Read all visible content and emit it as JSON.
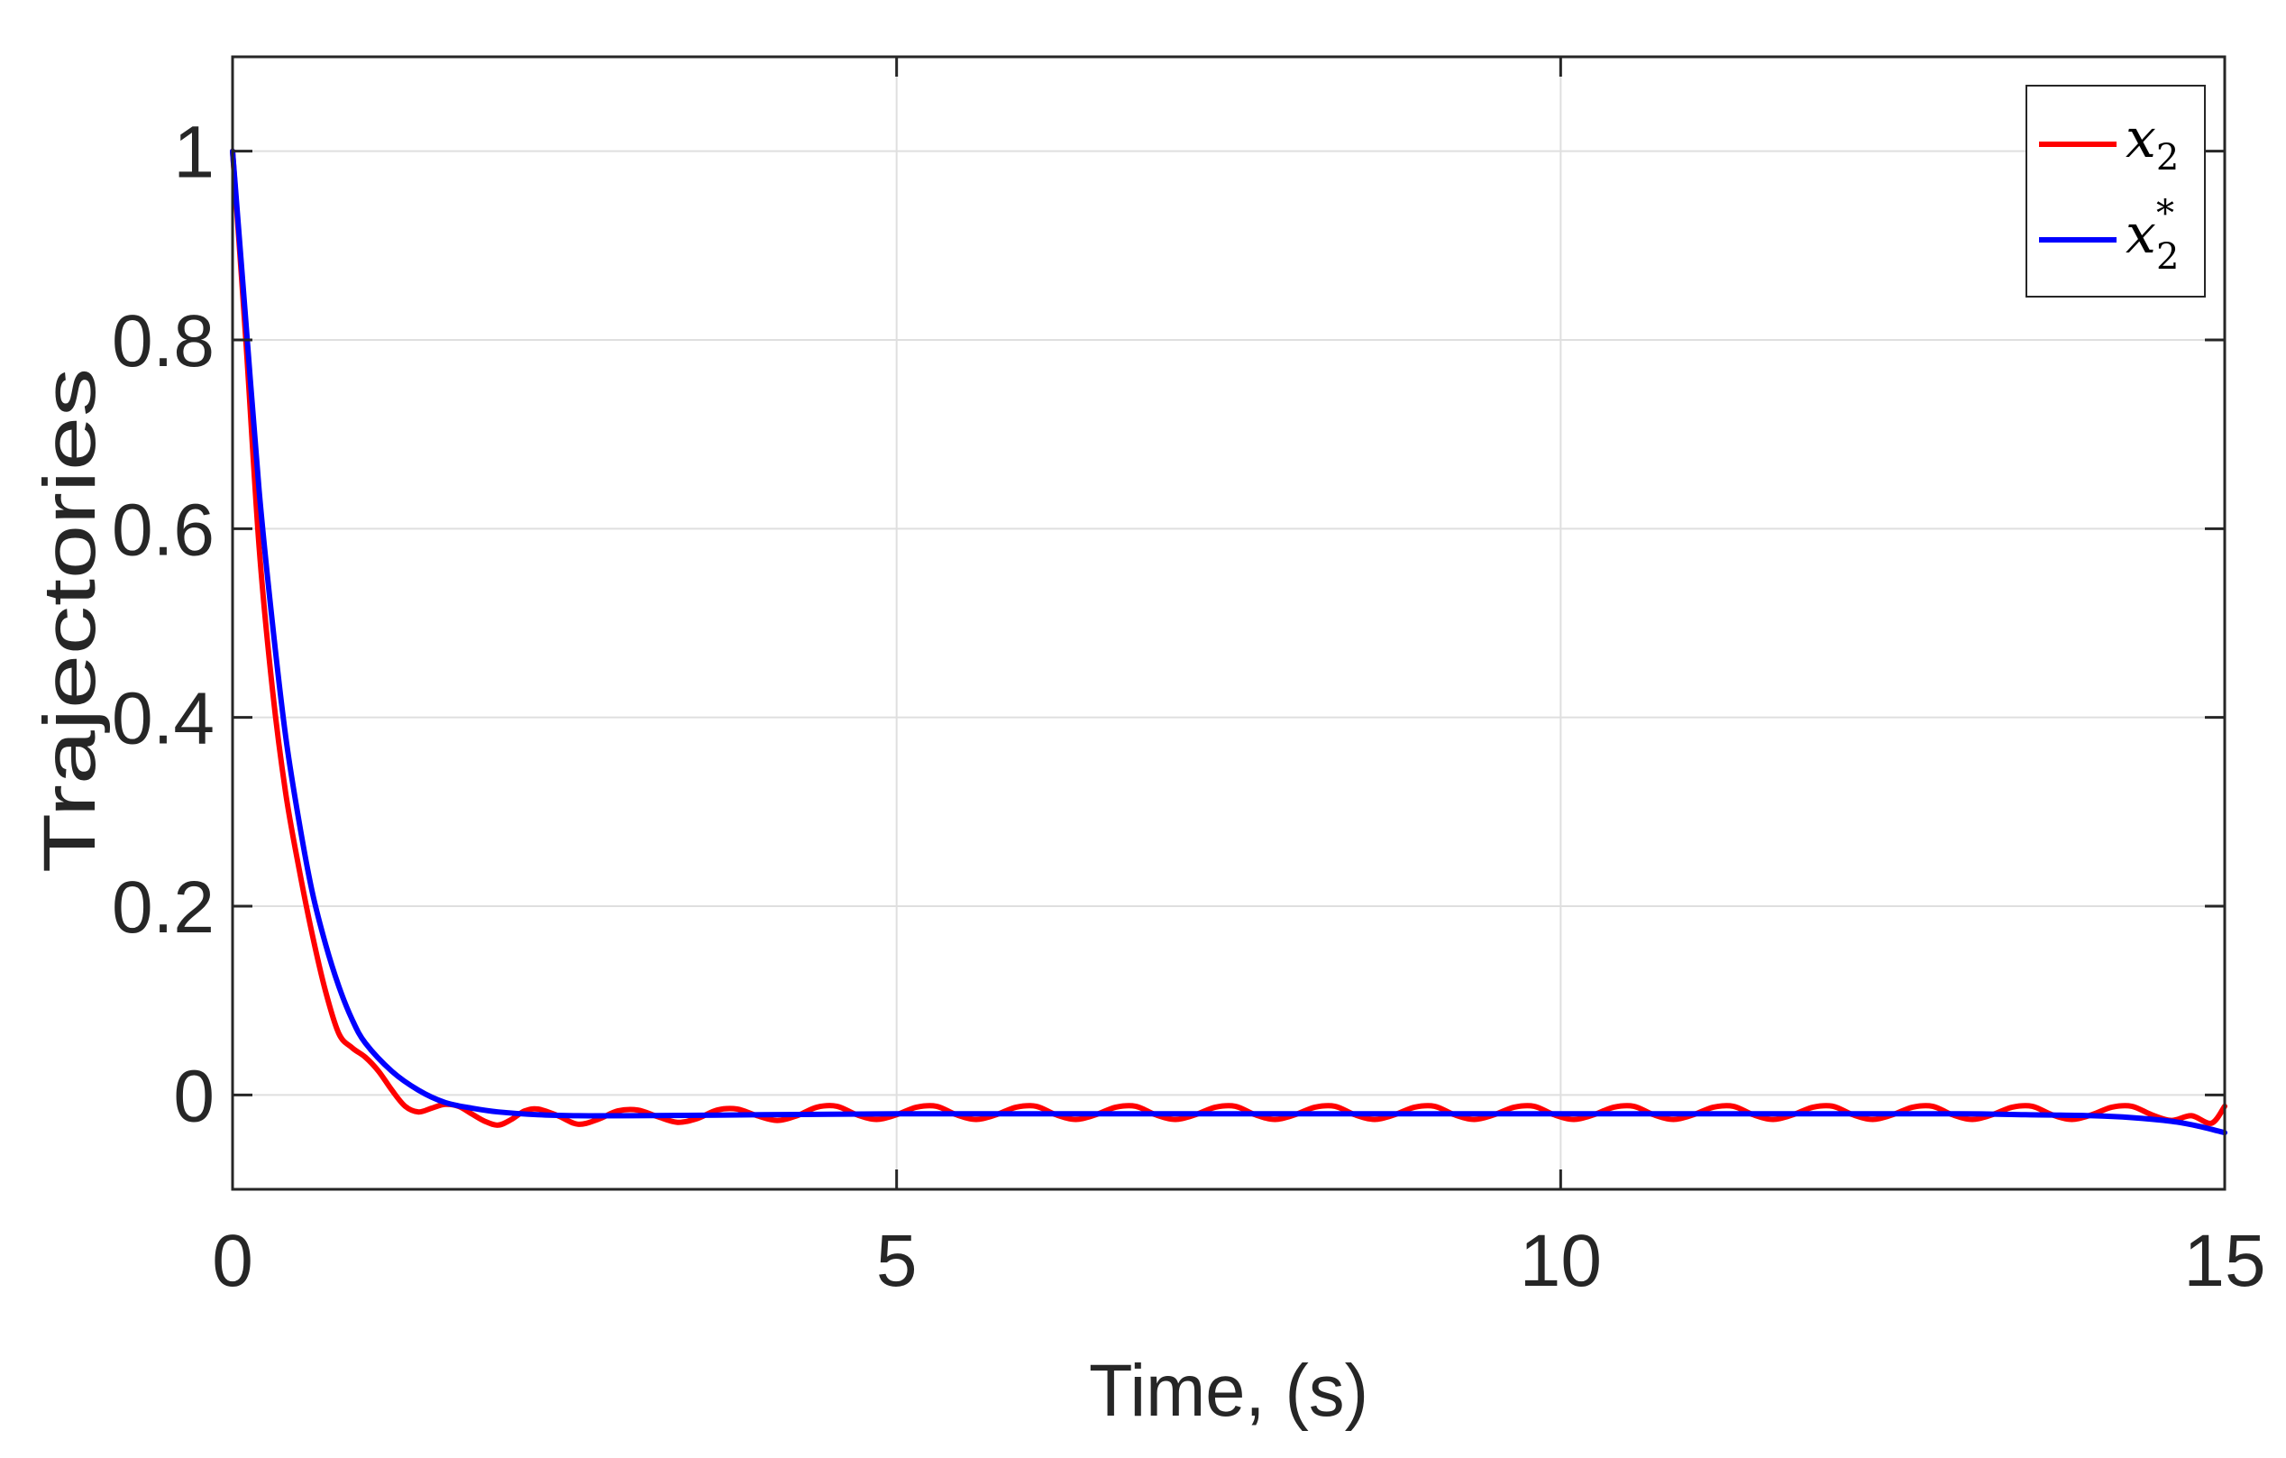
{
  "chart_data": {
    "type": "line",
    "xlabel": "Time, (s)",
    "ylabel": "Trajectories",
    "xlim": [
      0,
      15
    ],
    "ylim": [
      -0.1,
      1.1
    ],
    "x_ticks": [
      0,
      5,
      10,
      15
    ],
    "x_tick_labels": [
      "0",
      "5",
      "10",
      "15"
    ],
    "y_ticks": [
      0,
      0.2,
      0.4,
      0.6,
      0.8,
      1
    ],
    "y_tick_labels": [
      "0",
      "0.2",
      "0.4",
      "0.6",
      "0.8",
      "1"
    ],
    "grid": true,
    "legend_position": "top-right",
    "legend": [
      {
        "base": "x",
        "sub": "2",
        "sup": ""
      },
      {
        "base": "x",
        "sub": "2",
        "sup": "*"
      }
    ],
    "series": [
      {
        "name": "x2",
        "color": "#ff0000",
        "x": [
          0,
          0.1,
          0.2,
          0.3,
          0.4,
          0.5,
          0.6,
          0.7,
          0.8,
          0.9,
          1.0,
          1.1,
          1.2,
          1.3,
          1.4,
          1.5,
          1.6,
          1.7,
          1.8,
          1.9,
          2.0,
          2.1,
          2.2,
          2.3,
          2.45,
          2.6,
          2.75,
          2.9,
          3.05,
          3.2,
          3.35,
          3.5,
          3.65,
          3.8,
          3.95,
          4.1,
          4.25,
          4.4,
          4.55,
          4.7,
          4.85,
          5.0,
          5.15,
          5.3,
          5.45,
          5.6,
          5.75,
          5.9,
          6.05,
          6.2,
          6.35,
          6.5,
          6.65,
          6.8,
          6.95,
          7.1,
          7.25,
          7.4,
          7.55,
          7.7,
          7.85,
          8.0,
          8.15,
          8.3,
          8.45,
          8.6,
          8.75,
          8.9,
          9.05,
          9.2,
          9.35,
          9.5,
          9.65,
          9.8,
          9.95,
          10.1,
          10.25,
          10.4,
          10.55,
          10.7,
          10.85,
          11.0,
          11.15,
          11.3,
          11.45,
          11.6,
          11.75,
          11.9,
          12.05,
          12.2,
          12.35,
          12.5,
          12.65,
          12.8,
          12.95,
          13.1,
          13.25,
          13.4,
          13.55,
          13.7,
          13.85,
          14.0,
          14.15,
          14.3,
          14.45,
          14.6,
          14.75,
          14.9,
          15.0
        ],
        "y": [
          1.0,
          0.8,
          0.58,
          0.43,
          0.32,
          0.24,
          0.17,
          0.11,
          0.065,
          0.05,
          0.04,
          0.025,
          0.005,
          -0.012,
          -0.018,
          -0.014,
          -0.01,
          -0.012,
          -0.02,
          -0.028,
          -0.032,
          -0.026,
          -0.017,
          -0.015,
          -0.022,
          -0.031,
          -0.026,
          -0.017,
          -0.016,
          -0.023,
          -0.029,
          -0.025,
          -0.016,
          -0.015,
          -0.022,
          -0.027,
          -0.022,
          -0.013,
          -0.012,
          -0.021,
          -0.026,
          -0.021,
          -0.013,
          -0.012,
          -0.021,
          -0.026,
          -0.021,
          -0.013,
          -0.012,
          -0.021,
          -0.026,
          -0.021,
          -0.013,
          -0.012,
          -0.021,
          -0.026,
          -0.021,
          -0.013,
          -0.012,
          -0.021,
          -0.026,
          -0.021,
          -0.013,
          -0.012,
          -0.021,
          -0.026,
          -0.021,
          -0.013,
          -0.012,
          -0.021,
          -0.026,
          -0.021,
          -0.013,
          -0.012,
          -0.021,
          -0.026,
          -0.021,
          -0.013,
          -0.012,
          -0.021,
          -0.026,
          -0.021,
          -0.013,
          -0.012,
          -0.021,
          -0.026,
          -0.021,
          -0.013,
          -0.012,
          -0.021,
          -0.026,
          -0.021,
          -0.013,
          -0.012,
          -0.021,
          -0.026,
          -0.021,
          -0.013,
          -0.012,
          -0.021,
          -0.026,
          -0.021,
          -0.013,
          -0.012,
          -0.021,
          -0.027,
          -0.022,
          -0.03,
          -0.012
        ]
      },
      {
        "name": "x2*",
        "color": "#0000ff",
        "x": [
          0,
          0.1,
          0.2,
          0.3,
          0.4,
          0.5,
          0.6,
          0.7,
          0.8,
          0.9,
          1.0,
          1.2,
          1.4,
          1.6,
          1.8,
          2.0,
          2.3,
          2.6,
          3.0,
          4.0,
          5.0,
          6.0,
          7.0,
          8.0,
          9.0,
          10.0,
          11.0,
          12.0,
          13.0,
          13.5,
          14.0,
          14.3,
          14.6,
          14.8,
          15.0
        ],
        "y": [
          1.0,
          0.82,
          0.64,
          0.5,
          0.38,
          0.29,
          0.215,
          0.16,
          0.115,
          0.08,
          0.055,
          0.025,
          0.005,
          -0.008,
          -0.014,
          -0.018,
          -0.021,
          -0.022,
          -0.022,
          -0.021,
          -0.02,
          -0.02,
          -0.02,
          -0.02,
          -0.02,
          -0.02,
          -0.02,
          -0.02,
          -0.02,
          -0.021,
          -0.022,
          -0.024,
          -0.028,
          -0.033,
          -0.04
        ]
      }
    ]
  }
}
